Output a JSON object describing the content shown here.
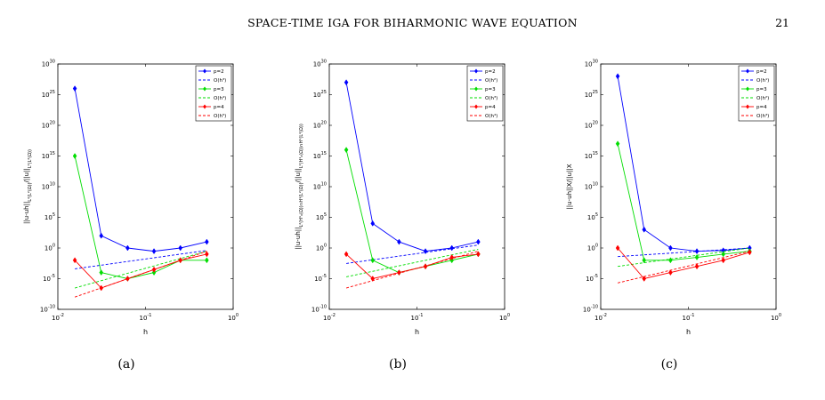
{
  "header": {
    "running_title": "SPACE-TIME IGA FOR BIHARMONIC WAVE EQUATION",
    "page_number": "21"
  },
  "caption_fragment": "",
  "chart_data": [
    {
      "type": "line",
      "sublabel": "(a)",
      "xlabel": "h",
      "ylabel": "||u-u_h||_{L²(L²(Ω))}/||u||_{L²(L²(Ω))}",
      "xscale": "log",
      "yscale": "log",
      "xlim": [
        0.01,
        1
      ],
      "ylim": [
        1e-10,
        1e+30
      ],
      "xticks": [
        "10^{-2}",
        "10^{-1}",
        "10^{0}"
      ],
      "yticks": [
        "10^{-10}",
        "10^{-5}",
        "10^{0}",
        "10^{5}",
        "10^{10}",
        "10^{15}",
        "10^{20}",
        "10^{25}",
        "10^{30}"
      ],
      "legend_position": "top-right",
      "x": [
        0.015625,
        0.03125,
        0.0625,
        0.125,
        0.25,
        0.5
      ],
      "series": [
        {
          "name": "p=2",
          "kind": "data",
          "color": "#0000ff",
          "values": [
            1e+26,
            100.0,
            1.0,
            0.3,
            1.0,
            10.0
          ]
        },
        {
          "name": "O(h³)",
          "kind": "rate",
          "color": "#0000ff",
          "values": [
            0.0004,
            null,
            null,
            null,
            null,
            0.4
          ]
        },
        {
          "name": "p=3",
          "kind": "data",
          "color": "#00dd00",
          "values": [
            1000000000000000.0,
            0.0001,
            1e-05,
            0.0001,
            0.01,
            0.01
          ]
        },
        {
          "name": "O(h⁴)",
          "kind": "rate",
          "color": "#00dd00",
          "values": [
            3e-07,
            null,
            null,
            null,
            null,
            0.3
          ]
        },
        {
          "name": "p=4",
          "kind": "data",
          "color": "#ff0000",
          "values": [
            0.01,
            3e-07,
            1e-05,
            0.0003,
            0.01,
            0.1
          ]
        },
        {
          "name": "O(h⁵)",
          "kind": "rate",
          "color": "#ff0000",
          "values": [
            1e-08,
            null,
            null,
            null,
            null,
            0.3
          ]
        }
      ]
    },
    {
      "type": "line",
      "sublabel": "(b)",
      "xlabel": "h",
      "ylabel": "||u-u_h||_{L²(H¹₀(Ω))∩H¹(L²(Ω))}/||u||_{L²(H¹₀(Ω))∩H¹(L²(Ω))}",
      "xscale": "log",
      "yscale": "log",
      "xlim": [
        0.01,
        1
      ],
      "ylim": [
        1e-10,
        1e+30
      ],
      "xticks": [
        "10^{-2}",
        "10^{-1}",
        "10^{0}"
      ],
      "yticks": [
        "10^{-10}",
        "10^{-5}",
        "10^{0}",
        "10^{5}",
        "10^{10}",
        "10^{15}",
        "10^{20}",
        "10^{25}",
        "10^{30}"
      ],
      "legend_position": "top-right",
      "x": [
        0.015625,
        0.03125,
        0.0625,
        0.125,
        0.25,
        0.5
      ],
      "series": [
        {
          "name": "p=2",
          "kind": "data",
          "color": "#0000ff",
          "values": [
            1e+27,
            10000.0,
            10.0,
            0.3,
            1.0,
            10.0
          ]
        },
        {
          "name": "O(h²)",
          "kind": "rate",
          "color": "#0000ff",
          "values": [
            0.003,
            null,
            null,
            null,
            null,
            3.0
          ]
        },
        {
          "name": "p=3",
          "kind": "data",
          "color": "#00dd00",
          "values": [
            1e+16,
            0.01,
            0.0001,
            0.001,
            0.01,
            0.1
          ]
        },
        {
          "name": "O(h³)",
          "kind": "rate",
          "color": "#00dd00",
          "values": [
            2e-05,
            null,
            null,
            null,
            null,
            0.6
          ]
        },
        {
          "name": "p=4",
          "kind": "data",
          "color": "#ff0000",
          "values": [
            0.1,
            1e-05,
            0.0001,
            0.001,
            0.03,
            0.1
          ]
        },
        {
          "name": "O(h⁴)",
          "kind": "rate",
          "color": "#ff0000",
          "values": [
            3e-07,
            null,
            null,
            null,
            null,
            0.3
          ]
        }
      ]
    },
    {
      "type": "line",
      "sublabel": "(c)",
      "xlabel": "h",
      "ylabel": "||u-u_h||_X/||u||_X",
      "xscale": "log",
      "yscale": "log",
      "xlim": [
        0.01,
        1
      ],
      "ylim": [
        1e-10,
        1e+30
      ],
      "xticks": [
        "10^{-2}",
        "10^{-1}",
        "10^{0}"
      ],
      "yticks": [
        "10^{-10}",
        "10^{-5}",
        "10^{0}",
        "10^{5}",
        "10^{10}",
        "10^{15}",
        "10^{20}",
        "10^{25}",
        "10^{30}"
      ],
      "legend_position": "top-right",
      "x": [
        0.015625,
        0.03125,
        0.0625,
        0.125,
        0.25,
        0.5
      ],
      "series": [
        {
          "name": "p=2",
          "kind": "data",
          "color": "#0000ff",
          "values": [
            1e+28,
            1000.0,
            1.0,
            0.3,
            0.4,
            1.0
          ]
        },
        {
          "name": "O(h¹)",
          "kind": "rate",
          "color": "#0000ff",
          "values": [
            0.04,
            null,
            null,
            null,
            null,
            1.0
          ]
        },
        {
          "name": "p=3",
          "kind": "data",
          "color": "#00dd00",
          "values": [
            1e+17,
            0.01,
            0.01,
            0.03,
            0.1,
            0.3
          ]
        },
        {
          "name": "O(h²)",
          "kind": "rate",
          "color": "#00dd00",
          "values": [
            0.001,
            null,
            null,
            null,
            null,
            1.0
          ]
        },
        {
          "name": "p=4",
          "kind": "data",
          "color": "#ff0000",
          "values": [
            1.0,
            1e-05,
            0.0001,
            0.001,
            0.01,
            0.2
          ]
        },
        {
          "name": "O(h³)",
          "kind": "rate",
          "color": "#ff0000",
          "values": [
            2e-06,
            null,
            null,
            null,
            null,
            0.3
          ]
        }
      ]
    }
  ]
}
